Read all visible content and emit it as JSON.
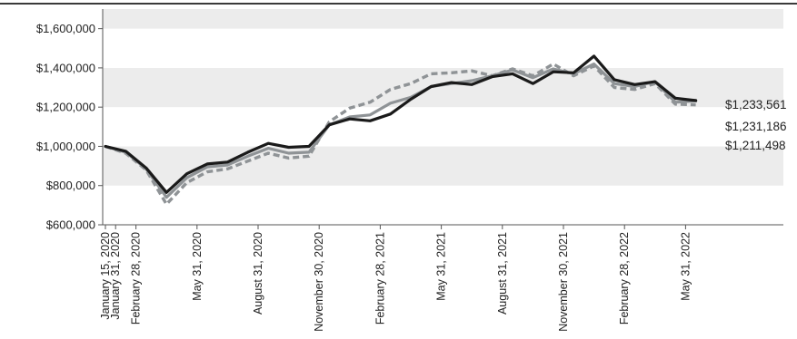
{
  "chart_data": {
    "type": "line",
    "title": "",
    "xlabel": "",
    "ylabel": "",
    "ylim": [
      600000,
      1700000
    ],
    "y_ticks": [
      600000,
      800000,
      1000000,
      1200000,
      1400000,
      1600000
    ],
    "y_tick_labels": [
      "$600,000",
      "$800,000",
      "$1,000,000",
      "$1,200,000",
      "$1,400,000",
      "$1,600,000"
    ],
    "x_tick_labels": [
      "January 15, 2020",
      "January 31, 2020",
      "February 28, 2020",
      "May 31, 2020",
      "August 31, 2020",
      "November 30, 2020",
      "February 28, 2021",
      "May 31, 2021",
      "August 31, 2021",
      "November 30, 2021",
      "February 28, 2022",
      "May 31, 2022"
    ],
    "x_tick_positions": [
      0,
      0.5,
      1.5,
      4.5,
      7.5,
      10.5,
      13.5,
      16.5,
      19.5,
      22.5,
      25.5,
      28.5
    ],
    "grid": "alternating horizontal bands",
    "legend": "none",
    "colors": {
      "series_black": "#1a1a1a",
      "series_gray": "#8f9396",
      "series_dashed": "#8f9396",
      "band_light": "#ececec",
      "band_white": "#ffffff",
      "top_rule": "#3a3a3a"
    },
    "series": [
      {
        "style": "solid-black",
        "end_label": "$1,233,561",
        "values": [
          1000000,
          975000,
          890000,
          765000,
          860000,
          910000,
          920000,
          970000,
          1015000,
          995000,
          1000000,
          1110000,
          1140000,
          1130000,
          1165000,
          1240000,
          1305000,
          1325000,
          1315000,
          1355000,
          1370000,
          1320000,
          1380000,
          1375000,
          1460000,
          1340000,
          1315000,
          1330000,
          1245000,
          1233561
        ]
      },
      {
        "style": "solid-gray",
        "end_label": "$1,231,186",
        "values": [
          1000000,
          970000,
          885000,
          740000,
          840000,
          895000,
          905000,
          950000,
          990000,
          965000,
          970000,
          1110000,
          1150000,
          1160000,
          1220000,
          1250000,
          1305000,
          1320000,
          1335000,
          1360000,
          1390000,
          1350000,
          1395000,
          1370000,
          1420000,
          1320000,
          1305000,
          1330000,
          1225000,
          1231186
        ]
      },
      {
        "style": "dashed-gray",
        "end_label": "$1,211,498",
        "values": [
          1000000,
          965000,
          880000,
          705000,
          815000,
          870000,
          885000,
          925000,
          965000,
          940000,
          950000,
          1125000,
          1195000,
          1225000,
          1290000,
          1320000,
          1370000,
          1375000,
          1385000,
          1360000,
          1395000,
          1360000,
          1420000,
          1360000,
          1410000,
          1300000,
          1290000,
          1320000,
          1215000,
          1211498
        ]
      }
    ]
  }
}
